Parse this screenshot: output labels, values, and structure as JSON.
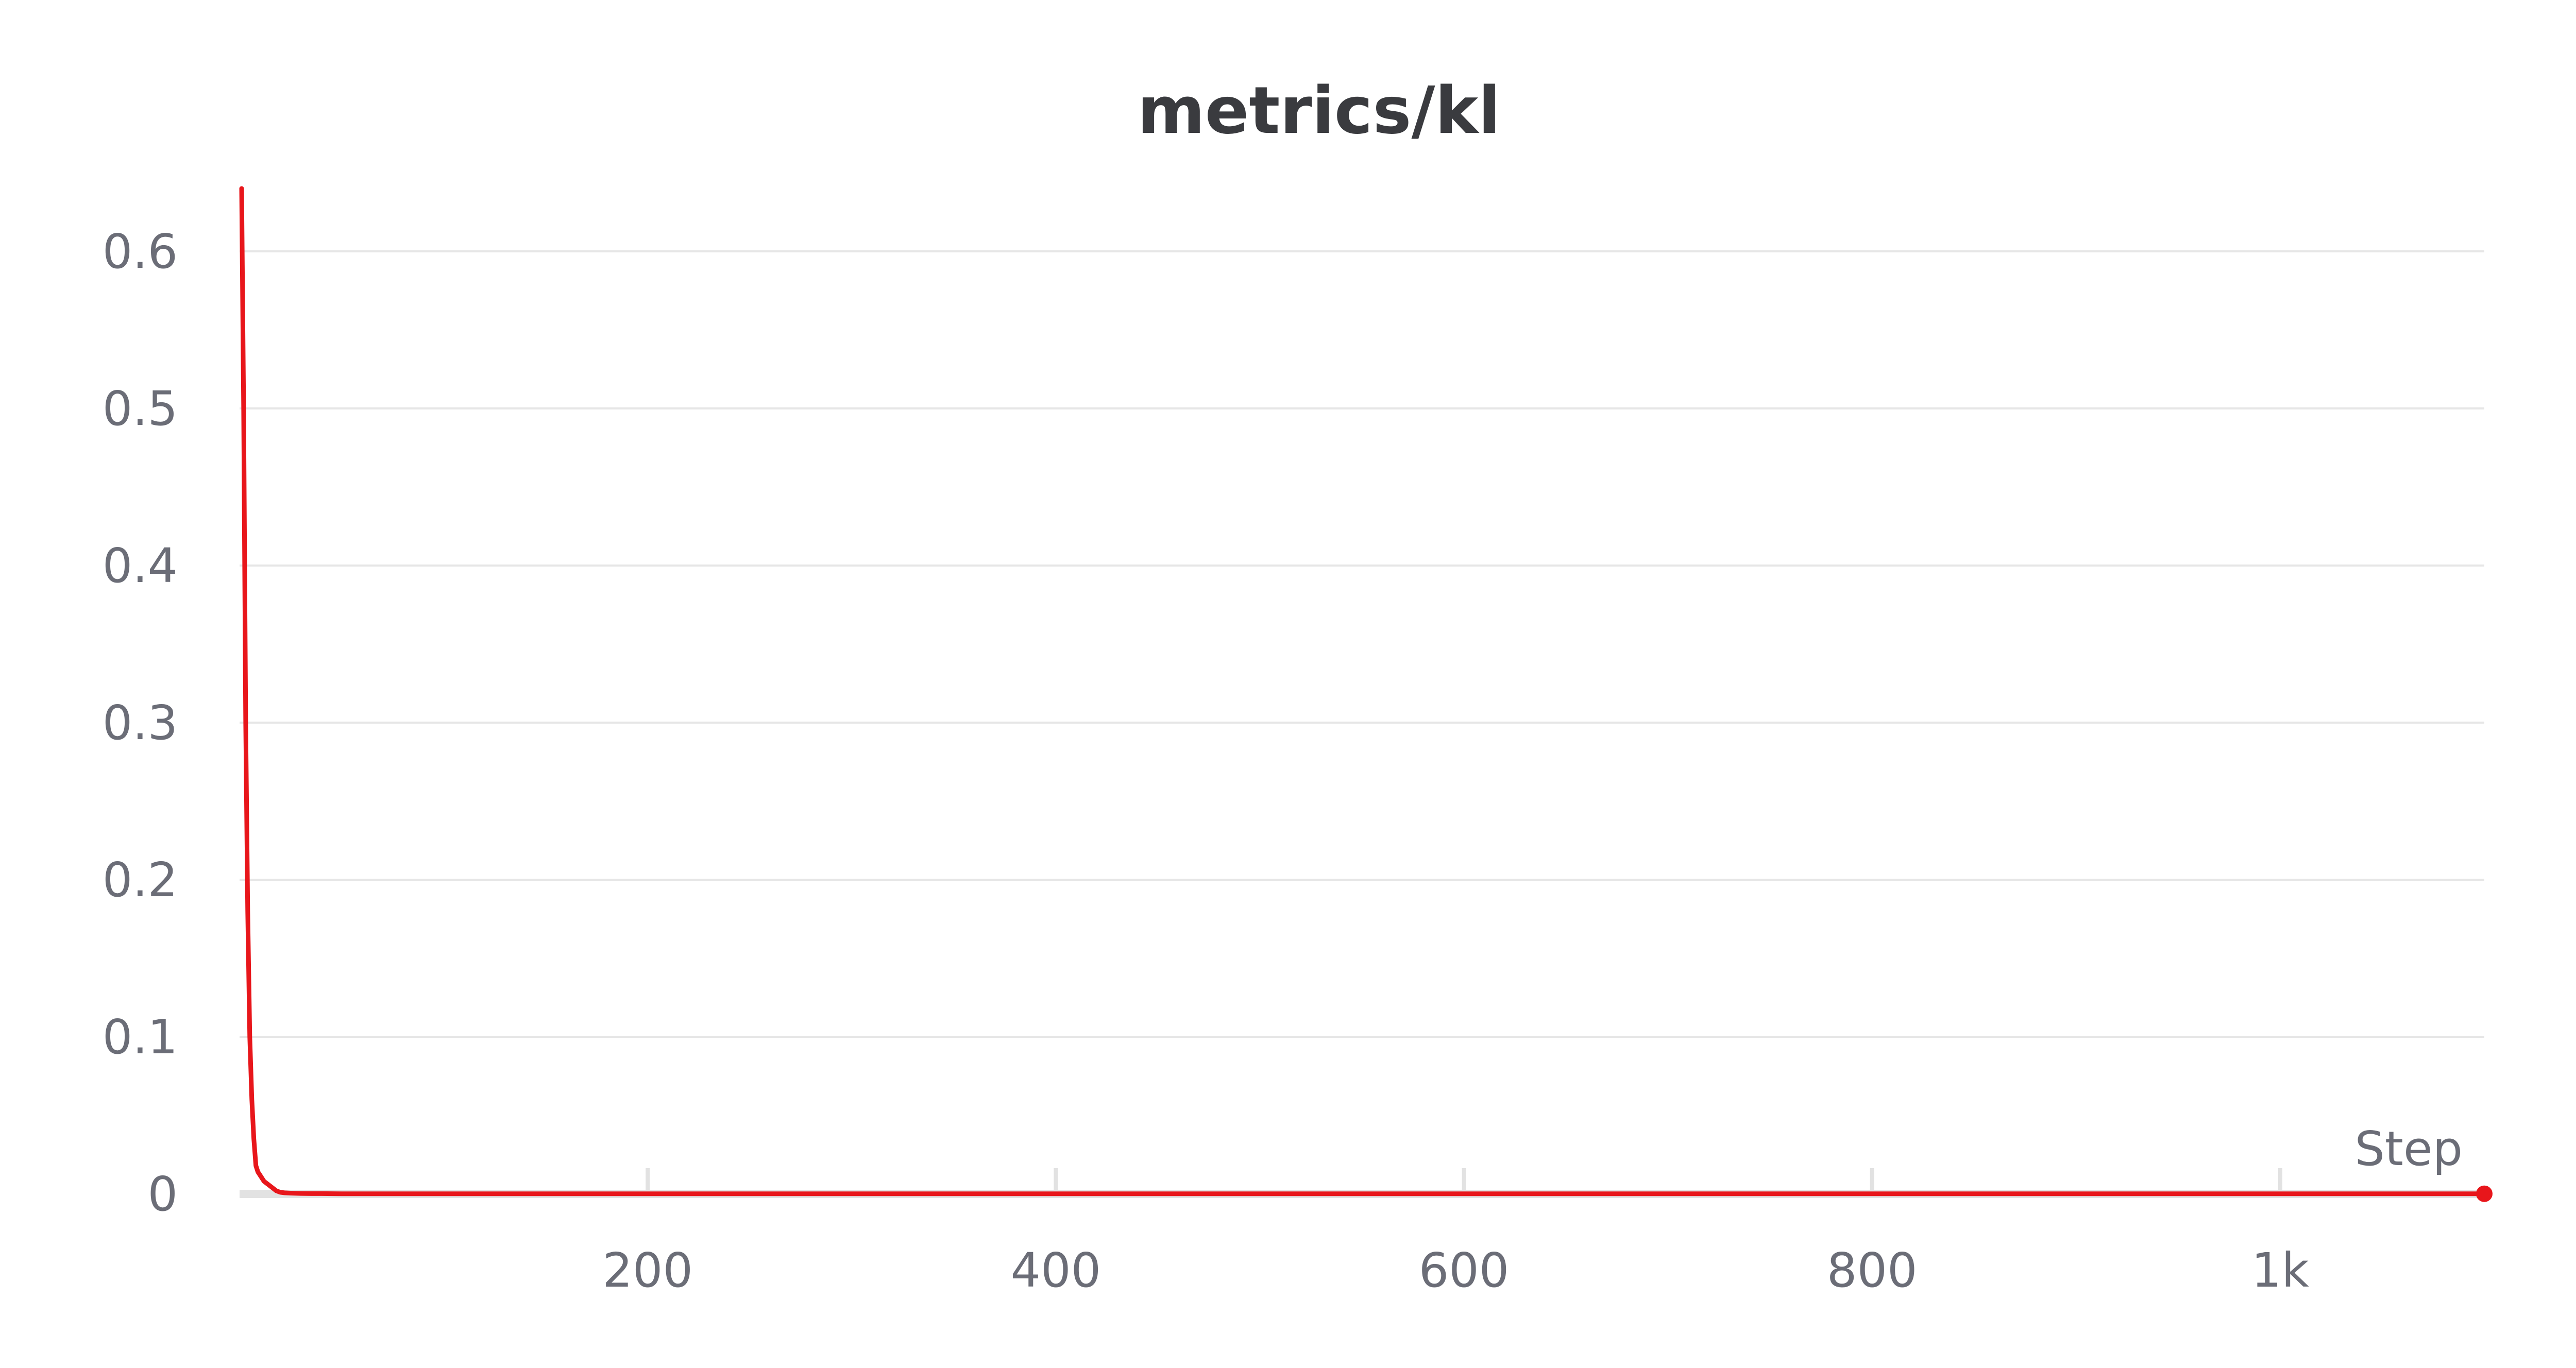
{
  "chart_data": {
    "type": "line",
    "title": "metrics/kl",
    "xlabel": "Step",
    "ylabel": "",
    "xlim": [
      0,
      1100
    ],
    "ylim": [
      0,
      0.64
    ],
    "x_ticks": [
      200,
      400,
      600,
      800,
      1000
    ],
    "x_tick_labels": [
      "200",
      "400",
      "600",
      "800",
      "1k"
    ],
    "y_ticks": [
      0,
      0.1,
      0.2,
      0.3,
      0.4,
      0.5,
      0.6
    ],
    "y_tick_labels": [
      "0",
      "0.1",
      "0.2",
      "0.3",
      "0.4",
      "0.5",
      "0.6"
    ],
    "grid": true,
    "legend": "none",
    "series": [
      {
        "color": "#e8161b",
        "x": [
          1,
          2,
          3,
          4,
          5,
          6,
          7,
          8,
          9,
          10,
          12,
          14,
          16,
          18,
          20,
          22,
          25,
          30,
          35,
          40,
          50,
          60,
          80,
          100,
          200,
          300,
          400,
          500,
          600,
          700,
          800,
          900,
          1000,
          1100
        ],
        "y": [
          0.64,
          0.5,
          0.3,
          0.18,
          0.1,
          0.06,
          0.035,
          0.018,
          0.014,
          0.012,
          0.008,
          0.006,
          0.004,
          0.002,
          0.001,
          0.0007,
          0.0005,
          0.0003,
          0.0002,
          0.0002,
          0.0001,
          0.0001,
          0.0001,
          0.0001,
          0.0001,
          0.0001,
          0.0001,
          0.0001,
          0.0001,
          0.0001,
          0.0001,
          0.0001,
          0.0001,
          0.0001
        ]
      }
    ]
  }
}
